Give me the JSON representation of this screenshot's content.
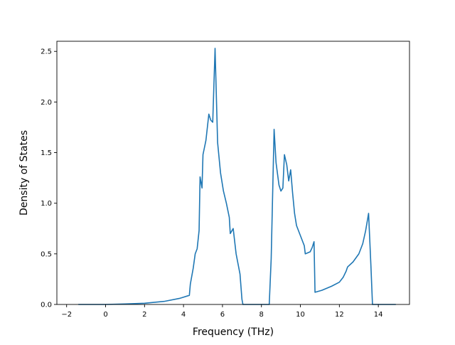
{
  "chart_data": {
    "type": "line",
    "title": "",
    "xlabel": "Frequency (THz)",
    "ylabel": "Density of States",
    "xlim": [
      -2.5,
      15.6
    ],
    "ylim": [
      0.0,
      2.6
    ],
    "x_ticks": [
      -2,
      0,
      2,
      4,
      6,
      8,
      10,
      12,
      14
    ],
    "y_ticks": [
      0.0,
      0.5,
      1.0,
      1.5,
      2.0,
      2.5
    ],
    "x_tick_labels": [
      "−2",
      "0",
      "2",
      "4",
      "6",
      "8",
      "10",
      "12",
      "14"
    ],
    "y_tick_labels": [
      "0.0",
      "0.5",
      "1.0",
      "1.5",
      "2.0",
      "2.5"
    ],
    "grid": false,
    "legend": "none",
    "series": [
      {
        "color": "#1f77b4",
        "points": [
          [
            -1.4,
            0.0
          ],
          [
            0.0,
            0.0
          ],
          [
            1.0,
            0.005
          ],
          [
            2.0,
            0.012
          ],
          [
            3.0,
            0.03
          ],
          [
            3.8,
            0.06
          ],
          [
            4.3,
            0.09
          ],
          [
            4.35,
            0.2
          ],
          [
            4.5,
            0.36
          ],
          [
            4.6,
            0.5
          ],
          [
            4.7,
            0.55
          ],
          [
            4.8,
            0.73
          ],
          [
            4.85,
            1.26
          ],
          [
            4.95,
            1.15
          ],
          [
            5.0,
            1.48
          ],
          [
            5.15,
            1.62
          ],
          [
            5.3,
            1.88
          ],
          [
            5.4,
            1.82
          ],
          [
            5.5,
            1.8
          ],
          [
            5.62,
            2.53
          ],
          [
            5.75,
            1.6
          ],
          [
            5.9,
            1.3
          ],
          [
            6.05,
            1.12
          ],
          [
            6.2,
            1.0
          ],
          [
            6.35,
            0.86
          ],
          [
            6.4,
            0.7
          ],
          [
            6.55,
            0.75
          ],
          [
            6.7,
            0.5
          ],
          [
            6.9,
            0.3
          ],
          [
            7.0,
            0.05
          ],
          [
            7.05,
            0.0
          ],
          [
            8.4,
            0.0
          ],
          [
            8.5,
            0.45
          ],
          [
            8.65,
            1.73
          ],
          [
            8.75,
            1.4
          ],
          [
            8.9,
            1.18
          ],
          [
            9.0,
            1.12
          ],
          [
            9.1,
            1.15
          ],
          [
            9.18,
            1.48
          ],
          [
            9.3,
            1.38
          ],
          [
            9.4,
            1.22
          ],
          [
            9.5,
            1.33
          ],
          [
            9.6,
            1.1
          ],
          [
            9.7,
            0.9
          ],
          [
            9.8,
            0.78
          ],
          [
            10.0,
            0.68
          ],
          [
            10.2,
            0.58
          ],
          [
            10.25,
            0.5
          ],
          [
            10.5,
            0.52
          ],
          [
            10.6,
            0.56
          ],
          [
            10.7,
            0.62
          ],
          [
            10.75,
            0.12
          ],
          [
            11.1,
            0.14
          ],
          [
            11.6,
            0.18
          ],
          [
            12.0,
            0.22
          ],
          [
            12.2,
            0.27
          ],
          [
            12.35,
            0.33
          ],
          [
            12.42,
            0.37
          ],
          [
            12.7,
            0.42
          ],
          [
            13.0,
            0.5
          ],
          [
            13.2,
            0.6
          ],
          [
            13.35,
            0.73
          ],
          [
            13.5,
            0.9
          ],
          [
            13.62,
            0.38
          ],
          [
            13.7,
            0.0
          ],
          [
            14.9,
            0.0
          ]
        ]
      }
    ]
  }
}
